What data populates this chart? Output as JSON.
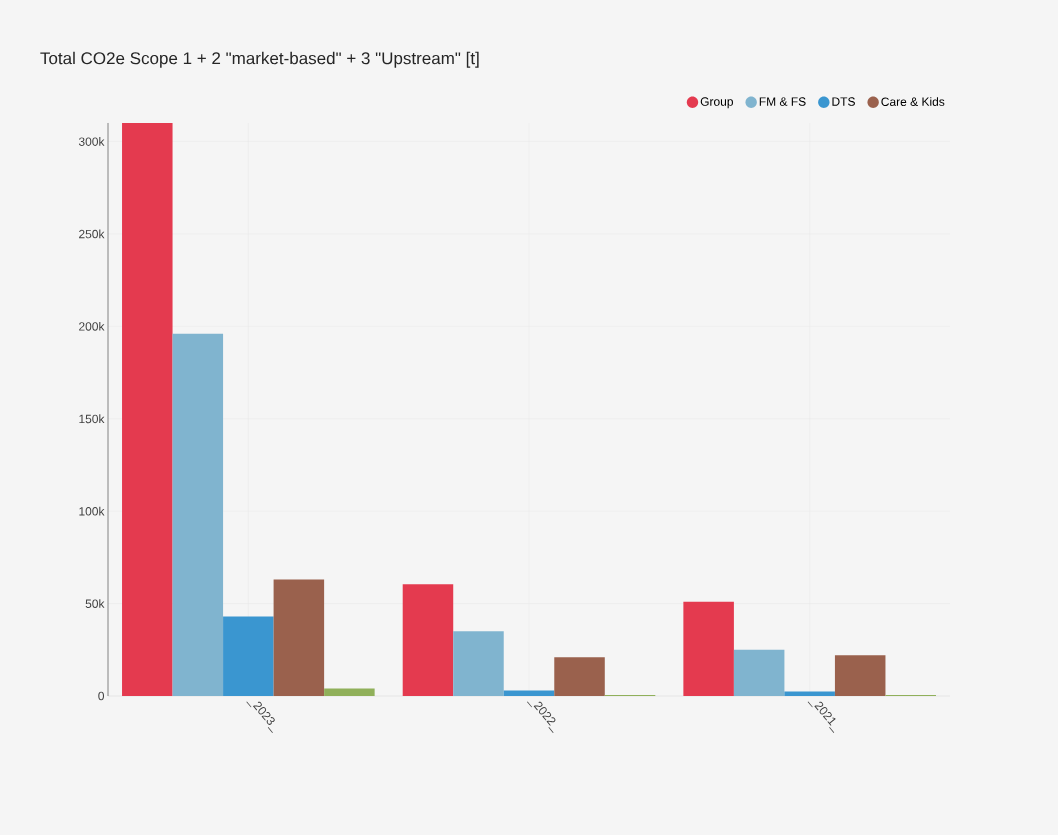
{
  "chart_data": {
    "type": "bar",
    "title": "Total CO2e Scope 1 + 2 \"market-based\" + 3 \"Upstream\" [t]",
    "categories": [
      "_2023_",
      "_2022_",
      "_2021_"
    ],
    "series": [
      {
        "name": "Group",
        "color": "#e43a4f",
        "values": [
          310000,
          60500,
          51000
        ]
      },
      {
        "name": "FM & FS",
        "color": "#80b4cf",
        "values": [
          196000,
          35000,
          25000
        ]
      },
      {
        "name": "DTS",
        "color": "#3a96d0",
        "values": [
          43000,
          3000,
          2500
        ]
      },
      {
        "name": "Care & Kids",
        "color": "#9a614d",
        "values": [
          63000,
          21000,
          22000
        ]
      },
      {
        "color": "#90b05a",
        "values": [
          4000,
          500,
          500
        ]
      }
    ],
    "ylim": [
      0,
      310000
    ],
    "yticks": [
      {
        "value": 0,
        "label": "0"
      },
      {
        "value": 50000,
        "label": "50k"
      },
      {
        "value": 100000,
        "label": "100k"
      },
      {
        "value": 150000,
        "label": "150k"
      },
      {
        "value": 200000,
        "label": "200k"
      },
      {
        "value": 250000,
        "label": "250k"
      },
      {
        "value": 300000,
        "label": "300k"
      }
    ],
    "grid": true,
    "legend": "top right"
  }
}
